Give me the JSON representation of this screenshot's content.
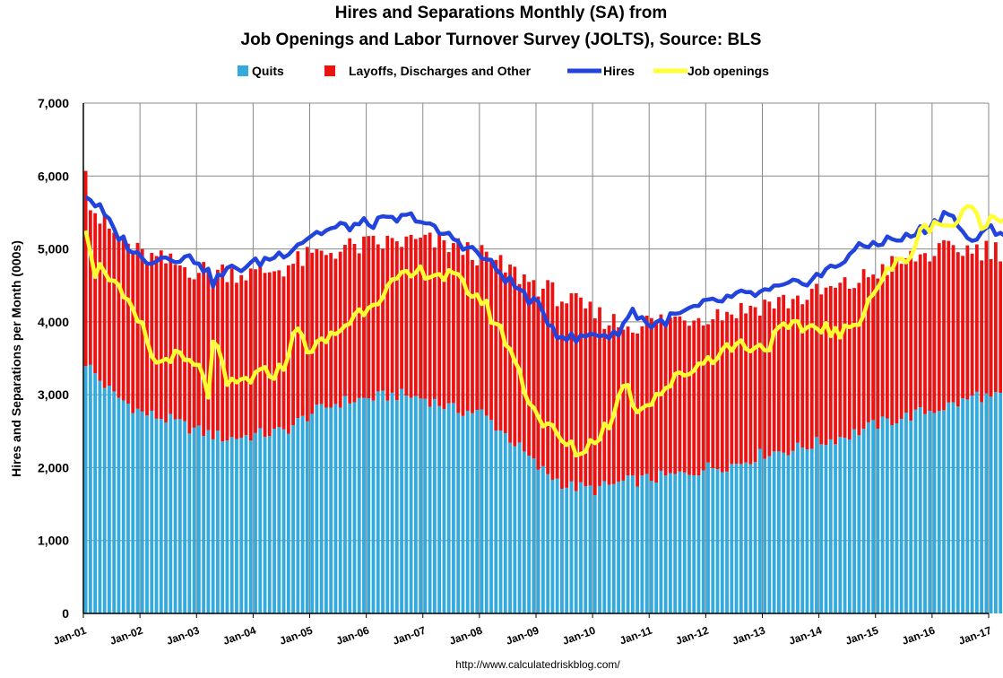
{
  "chart_data": {
    "type": "bar",
    "title_line1": "Hires and Separations Monthly (SA) from",
    "title_line2": "Job Openings and Labor Turnover Survey (JOLTS), Source: BLS",
    "ylabel": "Hires and Separations per Month (000s)",
    "source": "http://www.calculatedriskblog.com/",
    "ylim": [
      0,
      7000
    ],
    "y_ticks": [
      "0",
      "1,000",
      "2,000",
      "3,000",
      "4,000",
      "5,000",
      "6,000",
      "7,000"
    ],
    "x_ticks": [
      "Jan-01",
      "Jan-02",
      "Jan-03",
      "Jan-04",
      "Jan-05",
      "Jan-06",
      "Jan-07",
      "Jan-08",
      "Jan-09",
      "Jan-10",
      "Jan-11",
      "Jan-12",
      "Jan-13",
      "Jan-14",
      "Jan-15",
      "Jan-16",
      "Jan-17"
    ],
    "start": "2001-01",
    "grid": true,
    "legend": "top",
    "series_colors": {
      "quits": "#33aadd",
      "layoffs": "#ee1111",
      "hires": "#2244dd",
      "openings": "#ffff33"
    },
    "legend_labels": {
      "quits": "Quits",
      "layoffs": "Layoffs, Discharges and Other",
      "hires": "Hires",
      "openings": "Job openings"
    },
    "anchors": {
      "quits": [
        [
          0,
          3450
        ],
        [
          3,
          3200
        ],
        [
          6,
          3000
        ],
        [
          12,
          2750
        ],
        [
          18,
          2650
        ],
        [
          24,
          2500
        ],
        [
          30,
          2400
        ],
        [
          36,
          2450
        ],
        [
          42,
          2500
        ],
        [
          48,
          2750
        ],
        [
          54,
          2900
        ],
        [
          60,
          2950
        ],
        [
          66,
          3000
        ],
        [
          72,
          2950
        ],
        [
          78,
          2800
        ],
        [
          84,
          2750
        ],
        [
          90,
          2400
        ],
        [
          96,
          2000
        ],
        [
          102,
          1750
        ],
        [
          108,
          1700
        ],
        [
          114,
          1800
        ],
        [
          120,
          1850
        ],
        [
          126,
          1900
        ],
        [
          132,
          2000
        ],
        [
          138,
          2050
        ],
        [
          144,
          2200
        ],
        [
          150,
          2250
        ],
        [
          156,
          2350
        ],
        [
          162,
          2450
        ],
        [
          168,
          2600
        ],
        [
          174,
          2700
        ],
        [
          180,
          2800
        ],
        [
          186,
          2900
        ],
        [
          189,
          3000
        ],
        [
          192,
          2950
        ],
        [
          198,
          3000
        ],
        [
          203,
          3050
        ]
      ],
      "separations": [
        [
          0,
          5800
        ],
        [
          3,
          5400
        ],
        [
          6,
          5200
        ],
        [
          12,
          4900
        ],
        [
          18,
          4800
        ],
        [
          24,
          4700
        ],
        [
          30,
          4700
        ],
        [
          36,
          4650
        ],
        [
          42,
          4750
        ],
        [
          48,
          4900
        ],
        [
          54,
          5000
        ],
        [
          60,
          5050
        ],
        [
          66,
          5100
        ],
        [
          72,
          5100
        ],
        [
          78,
          5050
        ],
        [
          84,
          4900
        ],
        [
          90,
          4700
        ],
        [
          96,
          4500
        ],
        [
          102,
          4300
        ],
        [
          108,
          4100
        ],
        [
          114,
          3950
        ],
        [
          120,
          4000
        ],
        [
          126,
          4050
        ],
        [
          132,
          4100
        ],
        [
          138,
          4150
        ],
        [
          144,
          4250
        ],
        [
          150,
          4300
        ],
        [
          156,
          4400
        ],
        [
          162,
          4500
        ],
        [
          168,
          4700
        ],
        [
          174,
          4850
        ],
        [
          180,
          4950
        ],
        [
          186,
          5000
        ],
        [
          192,
          5000
        ],
        [
          198,
          4950
        ],
        [
          203,
          4950
        ]
      ],
      "hires": [
        [
          0,
          5750
        ],
        [
          3,
          5550
        ],
        [
          6,
          5250
        ],
        [
          12,
          4850
        ],
        [
          18,
          4900
        ],
        [
          24,
          4850
        ],
        [
          27,
          4550
        ],
        [
          30,
          4700
        ],
        [
          36,
          4800
        ],
        [
          42,
          4950
        ],
        [
          48,
          5200
        ],
        [
          54,
          5300
        ],
        [
          60,
          5350
        ],
        [
          66,
          5400
        ],
        [
          70,
          5450
        ],
        [
          74,
          5250
        ],
        [
          78,
          5150
        ],
        [
          84,
          4900
        ],
        [
          90,
          4550
        ],
        [
          96,
          4200
        ],
        [
          100,
          3850
        ],
        [
          104,
          3750
        ],
        [
          108,
          3850
        ],
        [
          112,
          3800
        ],
        [
          116,
          4150
        ],
        [
          120,
          3950
        ],
        [
          126,
          4100
        ],
        [
          132,
          4250
        ],
        [
          138,
          4350
        ],
        [
          144,
          4400
        ],
        [
          150,
          4500
        ],
        [
          156,
          4650
        ],
        [
          160,
          4800
        ],
        [
          162,
          4950
        ],
        [
          168,
          5100
        ],
        [
          174,
          5150
        ],
        [
          180,
          5350
        ],
        [
          183,
          5550
        ],
        [
          186,
          5200
        ],
        [
          189,
          5100
        ],
        [
          192,
          5300
        ],
        [
          195,
          5200
        ],
        [
          197,
          5050
        ]
      ],
      "openings": [
        [
          0,
          5350
        ],
        [
          2,
          4700
        ],
        [
          4,
          4750
        ],
        [
          8,
          4300
        ],
        [
          12,
          3900
        ],
        [
          15,
          3400
        ],
        [
          18,
          3550
        ],
        [
          24,
          3350
        ],
        [
          26,
          3000
        ],
        [
          27,
          3800
        ],
        [
          30,
          3100
        ],
        [
          36,
          3250
        ],
        [
          42,
          3350
        ],
        [
          44,
          3900
        ],
        [
          48,
          3600
        ],
        [
          54,
          3900
        ],
        [
          60,
          4250
        ],
        [
          66,
          4550
        ],
        [
          72,
          4700
        ],
        [
          78,
          4600
        ],
        [
          84,
          4300
        ],
        [
          90,
          3650
        ],
        [
          93,
          3100
        ],
        [
          96,
          2700
        ],
        [
          102,
          2300
        ],
        [
          105,
          2200
        ],
        [
          108,
          2400
        ],
        [
          112,
          2700
        ],
        [
          114,
          3200
        ],
        [
          117,
          2800
        ],
        [
          120,
          2950
        ],
        [
          126,
          3250
        ],
        [
          132,
          3500
        ],
        [
          138,
          3700
        ],
        [
          144,
          3650
        ],
        [
          148,
          3900
        ],
        [
          150,
          3900
        ],
        [
          156,
          3950
        ],
        [
          160,
          3800
        ],
        [
          163,
          3950
        ],
        [
          166,
          4300
        ],
        [
          168,
          4500
        ],
        [
          171,
          4750
        ],
        [
          174,
          4850
        ],
        [
          177,
          5200
        ],
        [
          180,
          5400
        ],
        [
          183,
          5300
        ],
        [
          186,
          5450
        ],
        [
          189,
          5600
        ],
        [
          190,
          5200
        ],
        [
          192,
          5450
        ],
        [
          195,
          5500
        ],
        [
          198,
          5550
        ],
        [
          200,
          5600
        ],
        [
          202,
          5500
        ]
      ]
    }
  }
}
